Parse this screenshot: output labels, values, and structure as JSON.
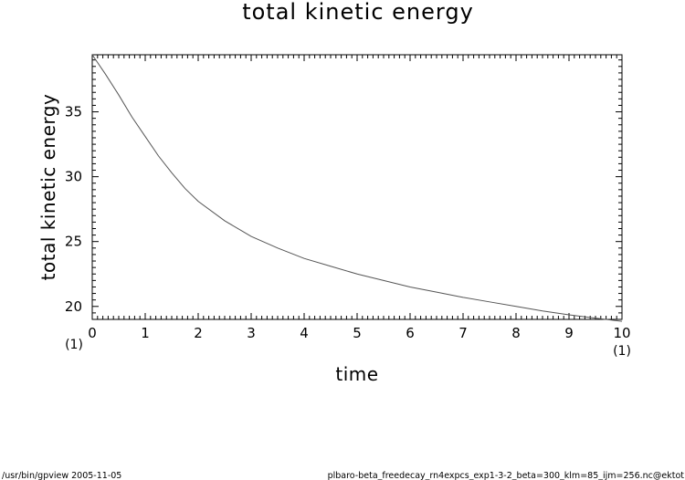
{
  "chart_data": {
    "type": "line",
    "title": "total kinetic energy",
    "xlabel": "time",
    "ylabel": "total kinetic energy",
    "x_unit": "(1)",
    "xlim": [
      0,
      10
    ],
    "ylim": [
      19,
      39.4
    ],
    "x_ticks": [
      "0",
      "1",
      "2",
      "3",
      "4",
      "5",
      "6",
      "7",
      "8",
      "9",
      "10"
    ],
    "y_ticks": [
      "20",
      "25",
      "30",
      "35"
    ],
    "grid": false,
    "series": [
      {
        "color": "#555555",
        "x": [
          0,
          0.25,
          0.5,
          0.75,
          1,
          1.25,
          1.5,
          1.75,
          2,
          2.5,
          3,
          3.5,
          4,
          4.5,
          5,
          5.5,
          6,
          6.5,
          7,
          7.5,
          8,
          8.5,
          9,
          9.5,
          10
        ],
        "y": [
          39.4,
          37.9,
          36.3,
          34.6,
          33.1,
          31.6,
          30.3,
          29.1,
          28.1,
          26.6,
          25.4,
          24.5,
          23.7,
          23.1,
          22.5,
          22.0,
          21.5,
          21.1,
          20.7,
          20.35,
          20.0,
          19.65,
          19.35,
          19.1,
          18.85
        ]
      }
    ]
  },
  "footer": {
    "left": "/usr/bin/gpview   2005-11-05",
    "right": "plbaro-beta_freedecay_rn4expcs_exp1-3-2_beta=300_klm=85_ijm=256.nc@ektot"
  }
}
